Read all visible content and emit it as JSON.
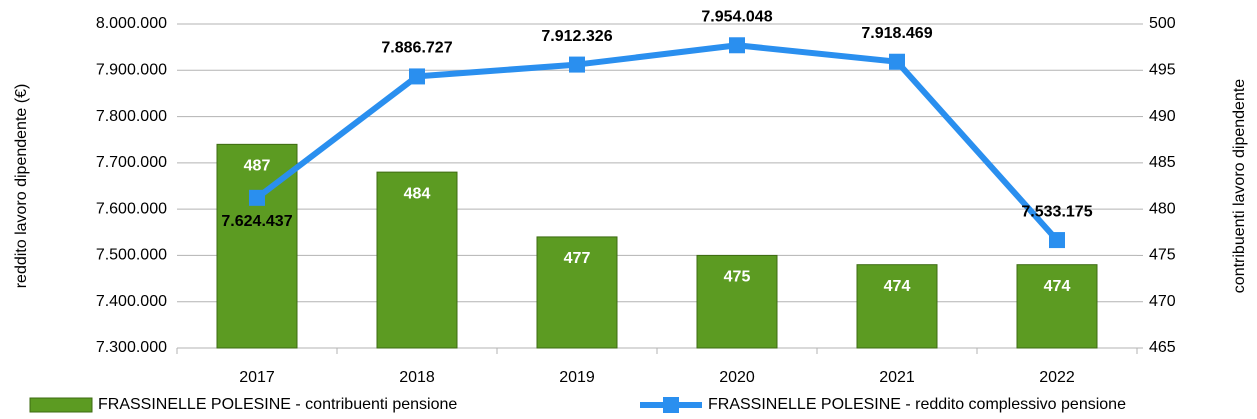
{
  "chart_data": {
    "type": "combo",
    "categories": [
      "2017",
      "2018",
      "2019",
      "2020",
      "2021",
      "2022"
    ],
    "y_label": "reddito lavoro dipendente (€)",
    "y2_label": "contribuenti lavoro dipendente",
    "ylim": [
      7300000,
      8000000
    ],
    "yticks": [
      {
        "value": 7300000,
        "label": "7.300.000"
      },
      {
        "value": 7400000,
        "label": "7.400.000"
      },
      {
        "value": 7500000,
        "label": "7.500.000"
      },
      {
        "value": 7600000,
        "label": "7.600.000"
      },
      {
        "value": 7700000,
        "label": "7.700.000"
      },
      {
        "value": 7800000,
        "label": "7.800.000"
      },
      {
        "value": 7900000,
        "label": "7.900.000"
      },
      {
        "value": 8000000,
        "label": "8.000.000"
      }
    ],
    "y2lim": [
      465,
      500
    ],
    "y2ticks": [
      465,
      470,
      475,
      480,
      485,
      490,
      495,
      500
    ],
    "grid": true,
    "series": [
      {
        "name": "FRASSINELLE POLESINE - contribuenti pensione",
        "type": "bar",
        "axis": "y2",
        "color": "#5c9b22",
        "values": [
          487,
          484,
          477,
          475,
          474,
          474
        ]
      },
      {
        "name": "FRASSINELLE POLESINE - reddito complessivo pensione",
        "type": "line",
        "axis": "y",
        "color": "#2a8fef",
        "values": [
          7624437,
          7886727,
          7912326,
          7954048,
          7918469,
          7533175
        ],
        "value_labels": [
          "7.624.437",
          "7.886.727",
          "7.912.326",
          "7.954.048",
          "7.918.469",
          "7.533.175"
        ]
      }
    ]
  }
}
